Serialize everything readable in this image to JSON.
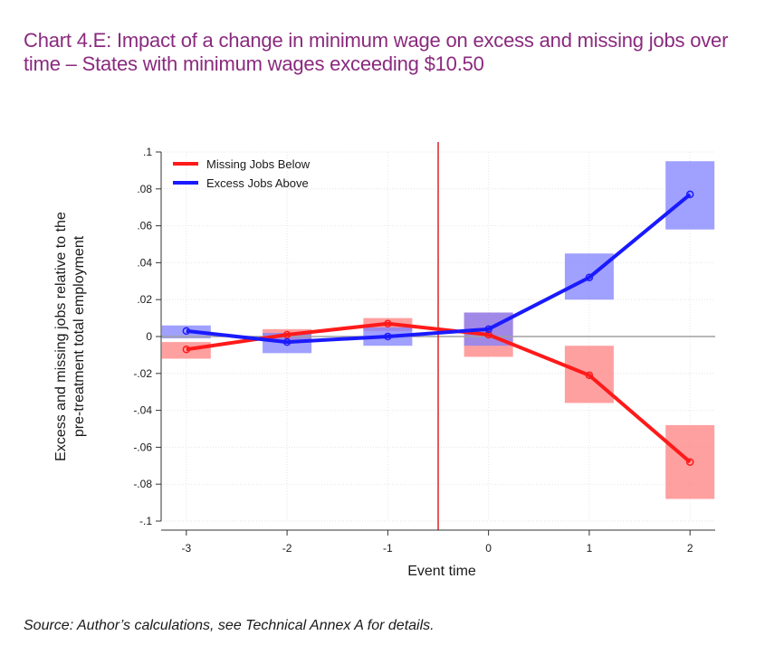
{
  "title": "Chart 4.E: Impact of a change in minimum wage on excess and missing jobs over time – States with minimum wages exceeding $10.50",
  "source": "Source: Author’s calculations, see Technical Annex A for details.",
  "chart_data": {
    "type": "line",
    "xlabel": "Event time",
    "ylabel_line1": "Excess and missing jobs relative to the",
    "ylabel_line2": "pre-treatment total employment",
    "x": [
      -3,
      -2,
      -1,
      0,
      1,
      2
    ],
    "x_ticks": [
      "-3",
      "-2",
      "-1",
      "0",
      "1",
      "2"
    ],
    "xlim": [
      -3.25,
      2.25
    ],
    "ylim": [
      -0.1,
      0.1
    ],
    "y_ticks": [
      0.1,
      0.08,
      0.06,
      0.04,
      0.02,
      0,
      -0.02,
      -0.04,
      -0.06,
      -0.08,
      -0.1
    ],
    "y_tick_labels": [
      ".1",
      ".08",
      ".06",
      ".04",
      ".02",
      "0",
      "-.02",
      "-.04",
      "-.06",
      "-.08",
      "-.1"
    ],
    "treatment_line_x": -0.5,
    "grid": true,
    "legend_position": "top-left",
    "series": [
      {
        "name": "Missing Jobs Below",
        "color": "#ff1a1a",
        "band_color": "#ff8080",
        "values": [
          -0.007,
          0.001,
          0.007,
          0.001,
          -0.021,
          -0.068
        ],
        "ci_low": [
          -0.012,
          -0.002,
          0.003,
          -0.011,
          -0.036,
          -0.088
        ],
        "ci_high": [
          -0.003,
          0.004,
          0.01,
          0.013,
          -0.005,
          -0.048
        ]
      },
      {
        "name": "Excess Jobs Above",
        "color": "#1a1aff",
        "band_color": "#8080ff",
        "values": [
          0.003,
          -0.003,
          0.0,
          0.004,
          0.032,
          0.077
        ],
        "ci_low": [
          -0.001,
          -0.009,
          -0.005,
          -0.005,
          0.02,
          0.058
        ],
        "ci_high": [
          0.006,
          0.002,
          0.005,
          0.013,
          0.045,
          0.095
        ]
      }
    ]
  }
}
